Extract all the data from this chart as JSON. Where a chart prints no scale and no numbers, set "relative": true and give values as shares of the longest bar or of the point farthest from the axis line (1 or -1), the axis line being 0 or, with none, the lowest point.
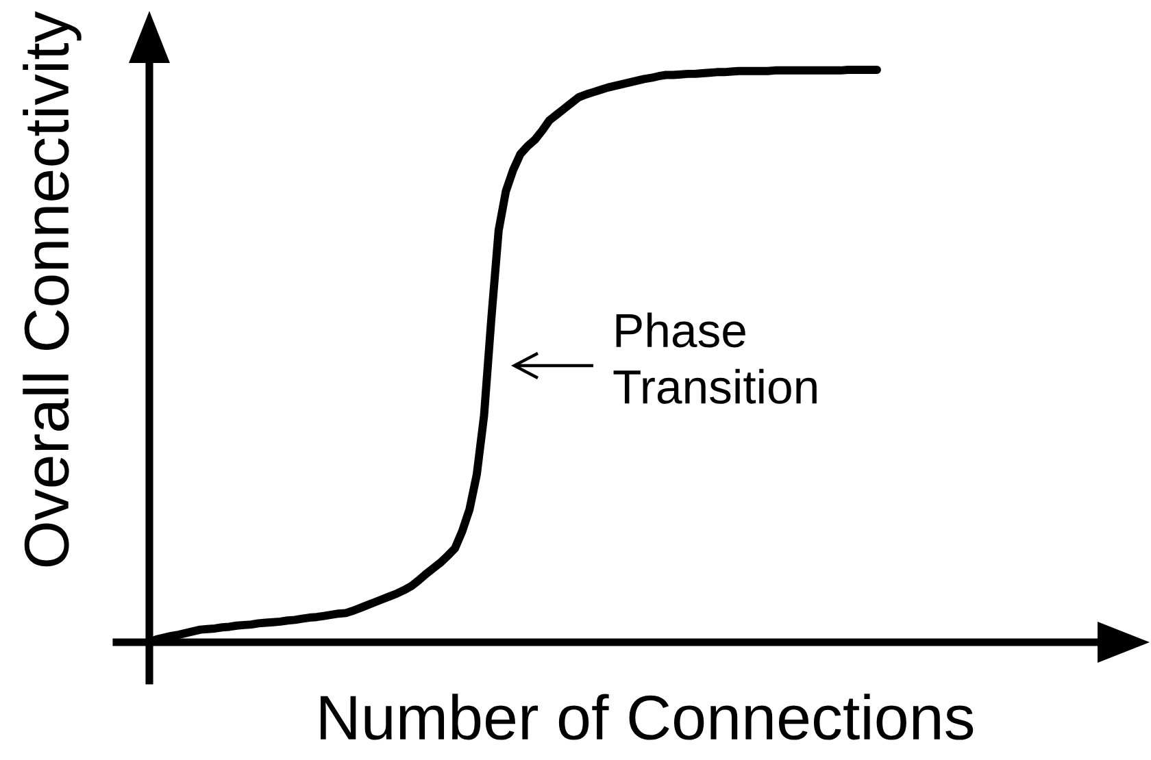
{
  "chart_data": {
    "type": "line",
    "relative": true,
    "xlabel": "Number of Connections",
    "ylabel": "Overall Connectivity",
    "categories": [
      null,
      null,
      null,
      null,
      null,
      null,
      null,
      null,
      null,
      null,
      null,
      null,
      null,
      null,
      null,
      null,
      null,
      null,
      null,
      null,
      null,
      null,
      null,
      null,
      null,
      null,
      null,
      null,
      null,
      null,
      null,
      null,
      null,
      null,
      null,
      null,
      null,
      null,
      null,
      null,
      null,
      null,
      null,
      null,
      null,
      null,
      null,
      null,
      null,
      null,
      null,
      null,
      null,
      null,
      null,
      null,
      null,
      null,
      null,
      null,
      null,
      null,
      null,
      null,
      null,
      null,
      null,
      null,
      null,
      null,
      null,
      null,
      null,
      null,
      null,
      null,
      null,
      null,
      null,
      null,
      null,
      null,
      null,
      null,
      null,
      null,
      null,
      null,
      null,
      null,
      null,
      null,
      null,
      null,
      null,
      null,
      null,
      null,
      null,
      null,
      null
    ],
    "series": [
      {
        "color": "#000000",
        "values": [
          0,
          0.005,
          0.008,
          0.011,
          0.013,
          0.016,
          0.019,
          0.022,
          0.023,
          0.024,
          0.026,
          0.027,
          0.029,
          0.03,
          0.031,
          0.033,
          0.034,
          0.035,
          0.036,
          0.038,
          0.039,
          0.041,
          0.043,
          0.044,
          0.046,
          0.048,
          0.05,
          0.051,
          0.055,
          0.06,
          0.065,
          0.07,
          0.075,
          0.08,
          0.085,
          0.091,
          0.098,
          0.108,
          0.119,
          0.129,
          0.139,
          0.151,
          0.164,
          0.194,
          0.232,
          0.293,
          0.396,
          0.565,
          0.719,
          0.788,
          0.825,
          0.853,
          0.867,
          0.878,
          0.894,
          0.912,
          0.922,
          0.932,
          0.942,
          0.952,
          0.957,
          0.961,
          0.965,
          0.969,
          0.972,
          0.975,
          0.978,
          0.981,
          0.984,
          0.986,
          0.989,
          0.991,
          0.991,
          0.992,
          0.993,
          0.993,
          0.994,
          0.995,
          0.996,
          0.996,
          0.997,
          0.998,
          0.998,
          0.998,
          0.998,
          0.998,
          0.999,
          0.999,
          0.999,
          0.999,
          0.999,
          0.999,
          0.999,
          0.999,
          0.999,
          0.999,
          1,
          1,
          1,
          1,
          1
        ]
      }
    ],
    "annotations": [
      "Phase\nTransition"
    ]
  }
}
